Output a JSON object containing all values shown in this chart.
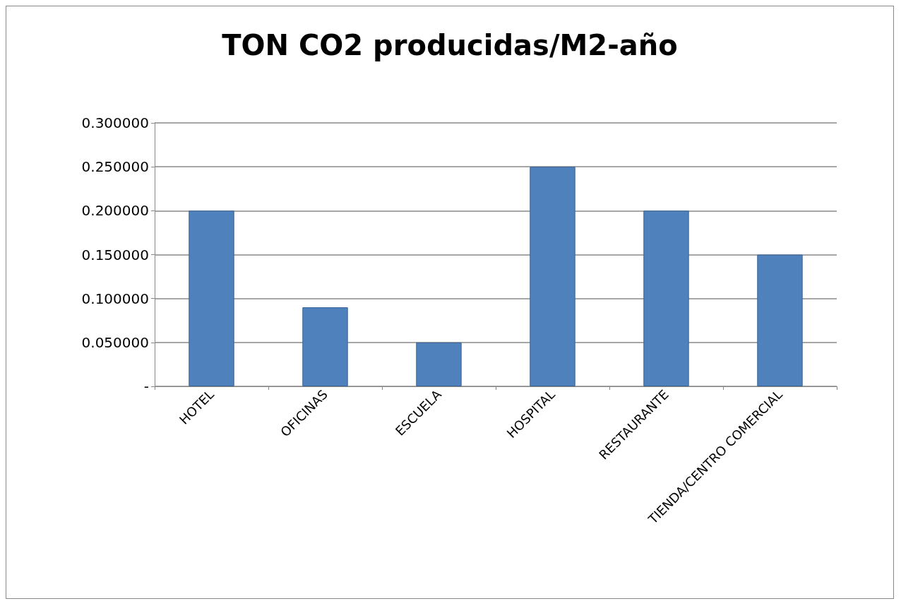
{
  "chart_data": {
    "type": "bar",
    "title": "TON CO2 producidas/M2-año",
    "categories": [
      "HOTEL",
      "OFICINAS",
      "ESCUELA",
      "HOSPITAL",
      "RESTAURANTE",
      "TIENDA/CENTRO COMERCIAL"
    ],
    "values": [
      0.2,
      0.09,
      0.05,
      0.25,
      0.2,
      0.15
    ],
    "color": "#4f81bd",
    "ylim": [
      0,
      0.3
    ],
    "yticks": [
      {
        "value": 0,
        "label": "-"
      },
      {
        "value": 0.05,
        "label": "0.050000"
      },
      {
        "value": 0.1,
        "label": "0.100000"
      },
      {
        "value": 0.15,
        "label": "0.150000"
      },
      {
        "value": 0.2,
        "label": "0.200000"
      },
      {
        "value": 0.25,
        "label": "0.250000"
      },
      {
        "value": 0.3,
        "label": "0.300000"
      }
    ],
    "grid": "y"
  }
}
